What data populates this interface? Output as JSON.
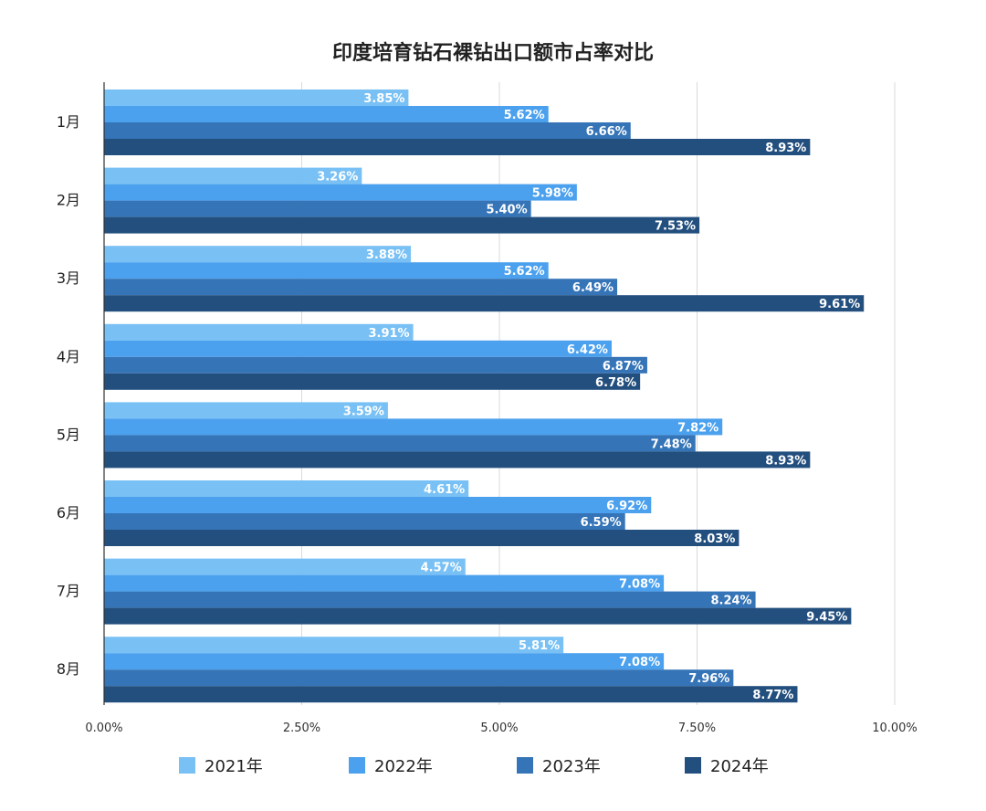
{
  "chart_data": {
    "type": "bar",
    "orientation": "horizontal",
    "title": "印度培育钻石裸钻出口额市占率对比",
    "categories": [
      "1月",
      "2月",
      "3月",
      "4月",
      "5月",
      "6月",
      "7月",
      "8月"
    ],
    "series": [
      {
        "name": "2021年",
        "color": "#79C1F5",
        "values": [
          3.85,
          3.26,
          3.88,
          3.91,
          3.59,
          4.61,
          4.57,
          5.81
        ],
        "labels": [
          "3.85%",
          "3.26%",
          "3.88%",
          "3.91%",
          "3.59%",
          "4.61%",
          "4.57%",
          "5.81%"
        ]
      },
      {
        "name": "2022年",
        "color": "#4BA1EE",
        "values": [
          5.62,
          5.98,
          5.62,
          6.42,
          7.82,
          6.92,
          7.08,
          7.08
        ],
        "labels": [
          "5.62%",
          "5.98%",
          "5.62%",
          "6.42%",
          "7.82%",
          "6.92%",
          "7.08%",
          "7.08%"
        ]
      },
      {
        "name": "2023年",
        "color": "#3574B7",
        "values": [
          6.66,
          5.4,
          6.49,
          6.87,
          7.48,
          6.59,
          8.24,
          7.96
        ],
        "labels": [
          "6.66%",
          "5.40%",
          "6.49%",
          "6.87%",
          "7.48%",
          "6.59%",
          "8.24%",
          "7.96%"
        ]
      },
      {
        "name": "2024年",
        "color": "#234F7E",
        "values": [
          8.93,
          7.53,
          9.61,
          6.78,
          8.93,
          8.03,
          9.45,
          8.77
        ],
        "labels": [
          "8.93%",
          "7.53%",
          "9.61%",
          "6.78%",
          "8.93%",
          "8.03%",
          "9.45%",
          "8.77%"
        ]
      }
    ],
    "xlim": [
      0,
      10
    ],
    "xticks": [
      0,
      2.5,
      5,
      7.5,
      10
    ],
    "xtick_labels": [
      "0.00%",
      "2.50%",
      "5.00%",
      "7.50%",
      "10.00%"
    ],
    "xlabel": "",
    "ylabel": "",
    "grid": "vertical",
    "legend_position": "bottom"
  }
}
